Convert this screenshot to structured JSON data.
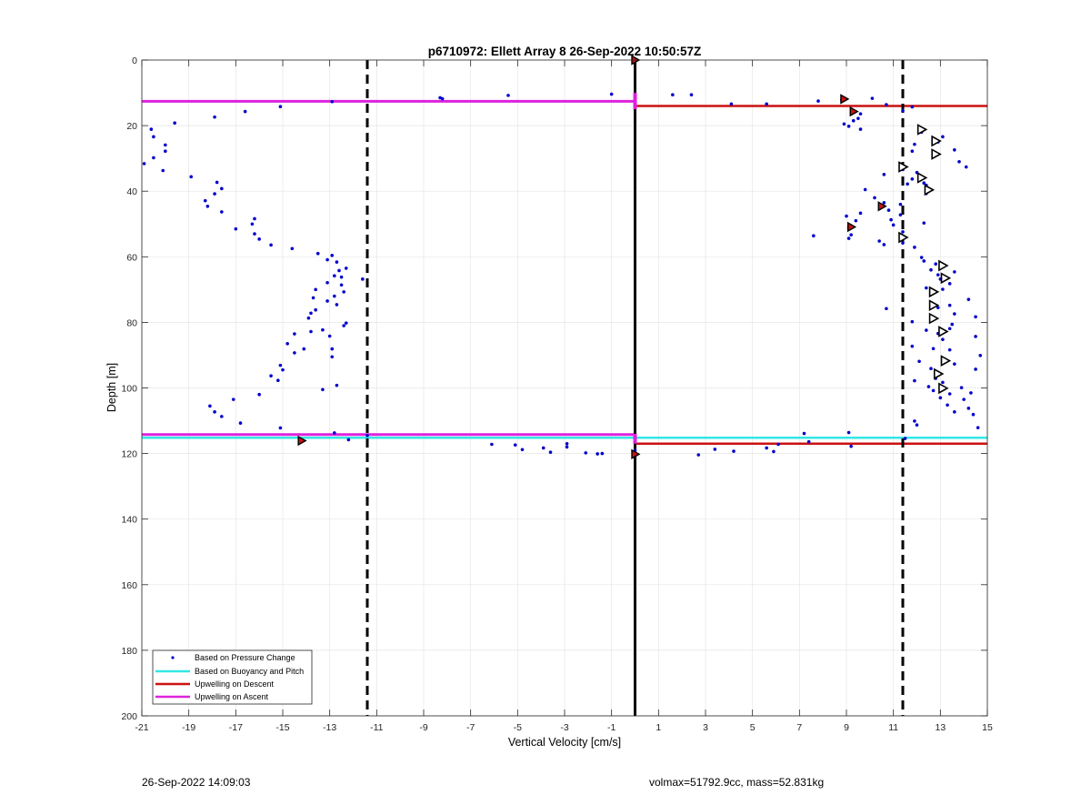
{
  "chart_data": {
    "type": "scatter",
    "title": "p6710972: Ellett Array 8 26-Sep-2022 10:50:57Z",
    "xlabel": "Vertical Velocity [cm/s]",
    "ylabel": "Depth [m]",
    "xlim": [
      -21,
      15
    ],
    "ylim": [
      0,
      200
    ],
    "y_reversed": true,
    "grid": true,
    "x_ticks": [
      -21,
      -19,
      -17,
      -15,
      -13,
      -11,
      -9,
      -7,
      -5,
      -3,
      -1,
      1,
      3,
      5,
      7,
      9,
      11,
      13,
      15
    ],
    "y_ticks": [
      0,
      20,
      40,
      60,
      80,
      100,
      120,
      140,
      160,
      180,
      200
    ],
    "x_tick_labels": [
      "-21",
      "-19",
      "-17",
      "-15",
      "-13",
      "-11",
      "-9",
      "-7",
      "-5",
      "-3",
      "-1",
      "1",
      "3",
      "5",
      "7",
      "9",
      "11",
      "13",
      "15"
    ],
    "y_tick_labels": [
      "0",
      "20",
      "40",
      "60",
      "80",
      "100",
      "120",
      "140",
      "160",
      "180",
      "200"
    ],
    "legend": {
      "location": "bottom-left",
      "entries": [
        {
          "label": "Based on Pressure Change",
          "color": "#0000cc",
          "style": "point"
        },
        {
          "label": "Based on Buoyancy and Pitch",
          "color": "#33e6e6",
          "style": "line"
        },
        {
          "label": "Upwelling on Descent",
          "color": "#cc1111",
          "style": "line"
        },
        {
          "label": "Upwelling on Ascent",
          "color": "#dd22dd",
          "style": "line"
        }
      ]
    },
    "pressure_change_points": [
      [
        -12.9,
        12.7
      ],
      [
        -15.1,
        14.2
      ],
      [
        -16.6,
        15.7
      ],
      [
        -17.9,
        17.4
      ],
      [
        -19.6,
        19.2
      ],
      [
        -20.6,
        21.1
      ],
      [
        -20.5,
        23.4
      ],
      [
        -20.0,
        25.9
      ],
      [
        -20.0,
        27.8
      ],
      [
        -20.5,
        29.8
      ],
      [
        -20.9,
        31.6
      ],
      [
        -20.1,
        33.7
      ],
      [
        -18.9,
        35.6
      ],
      [
        -17.8,
        37.3
      ],
      [
        -17.6,
        39.2
      ],
      [
        -17.9,
        40.8
      ],
      [
        -18.3,
        42.9
      ],
      [
        -18.2,
        44.6
      ],
      [
        -17.6,
        46.3
      ],
      [
        -16.2,
        48.4
      ],
      [
        -16.3,
        50.0
      ],
      [
        -17.0,
        51.5
      ],
      [
        -16.2,
        53.0
      ],
      [
        -16.0,
        54.6
      ],
      [
        -15.5,
        56.4
      ],
      [
        -14.6,
        57.5
      ],
      [
        -13.5,
        59.0
      ],
      [
        -12.9,
        59.6
      ],
      [
        -12.7,
        61.6
      ],
      [
        -13.1,
        60.9
      ],
      [
        -12.3,
        63.5
      ],
      [
        -12.6,
        64.2
      ],
      [
        -12.8,
        65.8
      ],
      [
        -11.6,
        66.8
      ],
      [
        -12.5,
        66.2
      ],
      [
        -12.5,
        68.6
      ],
      [
        -13.1,
        67.9
      ],
      [
        -12.4,
        70.7
      ],
      [
        -13.6,
        70.0
      ],
      [
        -12.8,
        72.0
      ],
      [
        -13.7,
        72.5
      ],
      [
        -13.1,
        73.5
      ],
      [
        -12.7,
        74.6
      ],
      [
        -13.6,
        76.2
      ],
      [
        -13.8,
        77.2
      ],
      [
        -12.3,
        80.2
      ],
      [
        -12.4,
        81.0
      ],
      [
        -13.9,
        78.7
      ],
      [
        -13.3,
        82.3
      ],
      [
        -13.8,
        82.8
      ],
      [
        -14.5,
        83.5
      ],
      [
        -13.0,
        84.2
      ],
      [
        -14.8,
        86.5
      ],
      [
        -14.1,
        88.1
      ],
      [
        -12.9,
        88.1
      ],
      [
        -14.5,
        89.3
      ],
      [
        -12.9,
        90.5
      ],
      [
        -15.1,
        93.1
      ],
      [
        -15.0,
        94.5
      ],
      [
        -15.5,
        96.3
      ],
      [
        -15.2,
        97.7
      ],
      [
        -12.7,
        99.2
      ],
      [
        -13.3,
        100.5
      ],
      [
        -16.0,
        102.0
      ],
      [
        -17.1,
        103.5
      ],
      [
        -18.1,
        105.5
      ],
      [
        -17.9,
        107.3
      ],
      [
        -17.6,
        108.7
      ],
      [
        -16.8,
        110.7
      ],
      [
        -15.1,
        112.2
      ],
      [
        -12.8,
        113.7
      ],
      [
        -11.4,
        114.5
      ],
      [
        -12.2,
        115.8
      ],
      [
        -8.3,
        11.5
      ],
      [
        -8.2,
        11.8
      ],
      [
        -5.4,
        10.8
      ],
      [
        -1.0,
        10.4
      ],
      [
        1.6,
        10.6
      ],
      [
        2.4,
        10.6
      ],
      [
        4.1,
        13.4
      ],
      [
        5.6,
        13.4
      ],
      [
        7.8,
        12.5
      ],
      [
        8.8,
        12.2
      ],
      [
        10.1,
        11.7
      ],
      [
        10.7,
        13.6
      ],
      [
        11.8,
        14.3
      ],
      [
        11.4,
        15.5
      ],
      [
        9.6,
        16.4
      ],
      [
        9.5,
        17.8
      ],
      [
        9.3,
        18.5
      ],
      [
        8.9,
        19.5
      ],
      [
        9.1,
        20.2
      ],
      [
        9.6,
        21.1
      ],
      [
        12.2,
        22.0
      ],
      [
        13.1,
        23.4
      ],
      [
        12.9,
        25.0
      ],
      [
        11.9,
        25.7
      ],
      [
        11.8,
        27.8
      ],
      [
        13.6,
        27.4
      ],
      [
        13.8,
        31.0
      ],
      [
        14.1,
        32.6
      ],
      [
        11.4,
        33.4
      ],
      [
        12.0,
        34.3
      ],
      [
        10.6,
        34.9
      ],
      [
        11.8,
        36.3
      ],
      [
        12.3,
        37.5
      ],
      [
        11.6,
        37.8
      ],
      [
        12.4,
        38.2
      ],
      [
        9.8,
        39.5
      ],
      [
        12.4,
        40.7
      ],
      [
        10.2,
        42.0
      ],
      [
        10.6,
        43.5
      ],
      [
        11.3,
        44.0
      ],
      [
        10.8,
        45.8
      ],
      [
        9.6,
        46.7
      ],
      [
        11.3,
        47.2
      ],
      [
        9.0,
        47.6
      ],
      [
        10.9,
        48.7
      ],
      [
        9.4,
        49.0
      ],
      [
        12.3,
        49.7
      ],
      [
        11.0,
        50.3
      ],
      [
        9.1,
        51.1
      ],
      [
        11.4,
        52.4
      ],
      [
        9.2,
        53.3
      ],
      [
        7.6,
        53.6
      ],
      [
        9.1,
        54.4
      ],
      [
        10.4,
        55.2
      ],
      [
        11.4,
        55.8
      ],
      [
        10.6,
        56.3
      ],
      [
        11.9,
        57.1
      ],
      [
        12.2,
        60.2
      ],
      [
        12.3,
        61.3
      ],
      [
        12.8,
        62.2
      ],
      [
        13.1,
        62.7
      ],
      [
        12.6,
        64.0
      ],
      [
        13.6,
        64.6
      ],
      [
        12.9,
        65.5
      ],
      [
        13.0,
        66.8
      ],
      [
        13.4,
        68.2
      ],
      [
        12.4,
        69.5
      ],
      [
        13.1,
        69.9
      ],
      [
        14.2,
        73.0
      ],
      [
        13.4,
        74.8
      ],
      [
        12.9,
        75.5
      ],
      [
        10.7,
        75.8
      ],
      [
        13.6,
        77.4
      ],
      [
        12.6,
        78.3
      ],
      [
        14.5,
        78.3
      ],
      [
        11.8,
        79.8
      ],
      [
        13.5,
        80.6
      ],
      [
        13.4,
        81.9
      ],
      [
        12.4,
        82.4
      ],
      [
        12.9,
        83.4
      ],
      [
        14.5,
        84.3
      ],
      [
        13.1,
        85.2
      ],
      [
        11.8,
        87.3
      ],
      [
        12.7,
        88.0
      ],
      [
        13.4,
        88.4
      ],
      [
        14.7,
        90.1
      ],
      [
        12.1,
        91.9
      ],
      [
        13.6,
        92.7
      ],
      [
        12.6,
        94.1
      ],
      [
        14.5,
        94.3
      ],
      [
        12.8,
        97.1
      ],
      [
        11.9,
        97.8
      ],
      [
        13.1,
        98.3
      ],
      [
        12.5,
        99.6
      ],
      [
        13.9,
        99.9
      ],
      [
        12.7,
        100.8
      ],
      [
        13.4,
        101.8
      ],
      [
        14.3,
        101.5
      ],
      [
        13.0,
        103.0
      ],
      [
        14.0,
        103.5
      ],
      [
        13.3,
        105.2
      ],
      [
        14.2,
        106.2
      ],
      [
        13.6,
        107.3
      ],
      [
        14.4,
        108.1
      ],
      [
        11.9,
        110.1
      ],
      [
        12.0,
        111.3
      ],
      [
        14.6,
        112.1
      ],
      [
        9.1,
        113.6
      ],
      [
        7.2,
        113.9
      ],
      [
        7.4,
        116.4
      ],
      [
        9.2,
        117.8
      ],
      [
        11.5,
        115.4
      ],
      [
        -6.1,
        117.2
      ],
      [
        -5.1,
        117.4
      ],
      [
        -4.8,
        118.8
      ],
      [
        -3.9,
        118.3
      ],
      [
        -3.6,
        119.6
      ],
      [
        -2.9,
        117.0
      ],
      [
        -2.9,
        118.0
      ],
      [
        -2.1,
        119.8
      ],
      [
        -1.6,
        120.1
      ],
      [
        -1.4,
        120.0
      ],
      [
        2.7,
        120.4
      ],
      [
        3.4,
        118.7
      ],
      [
        4.2,
        119.3
      ],
      [
        5.6,
        118.3
      ],
      [
        5.9,
        119.4
      ],
      [
        6.1,
        117.2
      ],
      [
        0.0,
        119.0
      ]
    ],
    "red_marker_points": [
      [
        0.0,
        0.0
      ],
      [
        8.9,
        11.9
      ],
      [
        9.3,
        15.7
      ],
      [
        10.5,
        44.6
      ],
      [
        9.2,
        50.9
      ],
      [
        -14.2,
        116.1
      ],
      [
        0.0,
        120.2
      ]
    ],
    "triangle_marker_points": [
      [
        12.2,
        21.2
      ],
      [
        12.8,
        24.7
      ],
      [
        12.8,
        28.7
      ],
      [
        11.4,
        32.6
      ],
      [
        12.2,
        35.9
      ],
      [
        12.5,
        39.6
      ],
      [
        11.4,
        54.1
      ],
      [
        13.1,
        62.7
      ],
      [
        13.2,
        66.5
      ],
      [
        12.7,
        70.7
      ],
      [
        12.7,
        74.8
      ],
      [
        12.7,
        78.8
      ],
      [
        13.1,
        82.8
      ],
      [
        13.2,
        91.7
      ],
      [
        12.9,
        95.7
      ],
      [
        13.1,
        100.1
      ]
    ],
    "reference_lines": [
      {
        "kind": "hline",
        "y": 12.6,
        "x_range": [
          -21,
          0
        ],
        "color": "#dd22dd",
        "width": 3
      },
      {
        "kind": "hline",
        "y": 14.0,
        "x_range": [
          0,
          15
        ],
        "color": "#cc1111",
        "width": 2.5
      },
      {
        "kind": "hline",
        "y": 115.2,
        "x_range": [
          -21,
          15
        ],
        "color": "#33e6e6",
        "width": 2.5
      },
      {
        "kind": "hline",
        "y": 114.2,
        "x_range": [
          -21,
          0
        ],
        "color": "#dd22dd",
        "width": 3
      },
      {
        "kind": "hline",
        "y": 117.0,
        "x_range": [
          0,
          15
        ],
        "color": "#cc1111",
        "width": 2.5
      },
      {
        "kind": "vline",
        "x": 0.0,
        "y_range": [
          0,
          200
        ],
        "color": "#000000",
        "style": "solid",
        "width": 3
      },
      {
        "kind": "vline",
        "x": -11.4,
        "y_range": [
          0,
          200
        ],
        "color": "#000000",
        "style": "dashed",
        "width": 3
      },
      {
        "kind": "vline",
        "x": 11.4,
        "y_range": [
          0,
          200
        ],
        "color": "#000000",
        "style": "dashed",
        "width": 3
      },
      {
        "kind": "vline",
        "x": 0.0,
        "y_range": [
          10,
          15
        ],
        "color": "#dd22dd",
        "style": "solid",
        "width": 4
      },
      {
        "kind": "vline",
        "x": 0.0,
        "y_range": [
          114,
          117
        ],
        "color": "#dd22dd",
        "style": "solid",
        "width": 4
      }
    ]
  },
  "footer": {
    "timestamp": "26-Sep-2022 14:09:03",
    "params": "volmax=51792.9cc, mass=52.831kg"
  }
}
